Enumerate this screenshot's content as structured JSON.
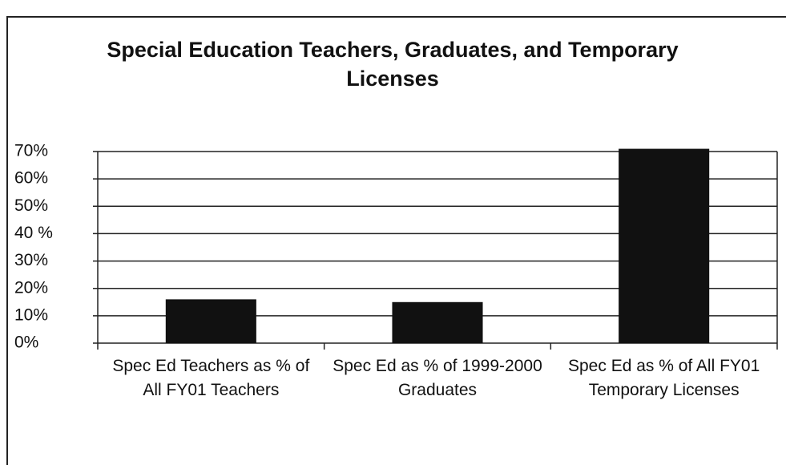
{
  "chart_data": {
    "type": "bar",
    "title": "Special Education Teachers, Graduates, and Temporary Licenses",
    "categories": [
      "Spec Ed Teachers as % of All FY01 Teachers",
      "Spec Ed as % of 1999-2000 Graduates",
      "Spec Ed as % of All FY01 Temporary Licenses"
    ],
    "values": [
      16,
      15,
      71
    ],
    "color": "#111111",
    "ylim": [
      0,
      70
    ],
    "yticks": [
      {
        "value": 0,
        "label": "0%"
      },
      {
        "value": 10,
        "label": "10%"
      },
      {
        "value": 20,
        "label": "20%"
      },
      {
        "value": 30,
        "label": "30%"
      },
      {
        "value": 40,
        "label": "40 %"
      },
      {
        "value": 50,
        "label": "50%"
      },
      {
        "value": 60,
        "label": "60%"
      },
      {
        "value": 70,
        "label": "70%"
      }
    ],
    "grid": true
  }
}
